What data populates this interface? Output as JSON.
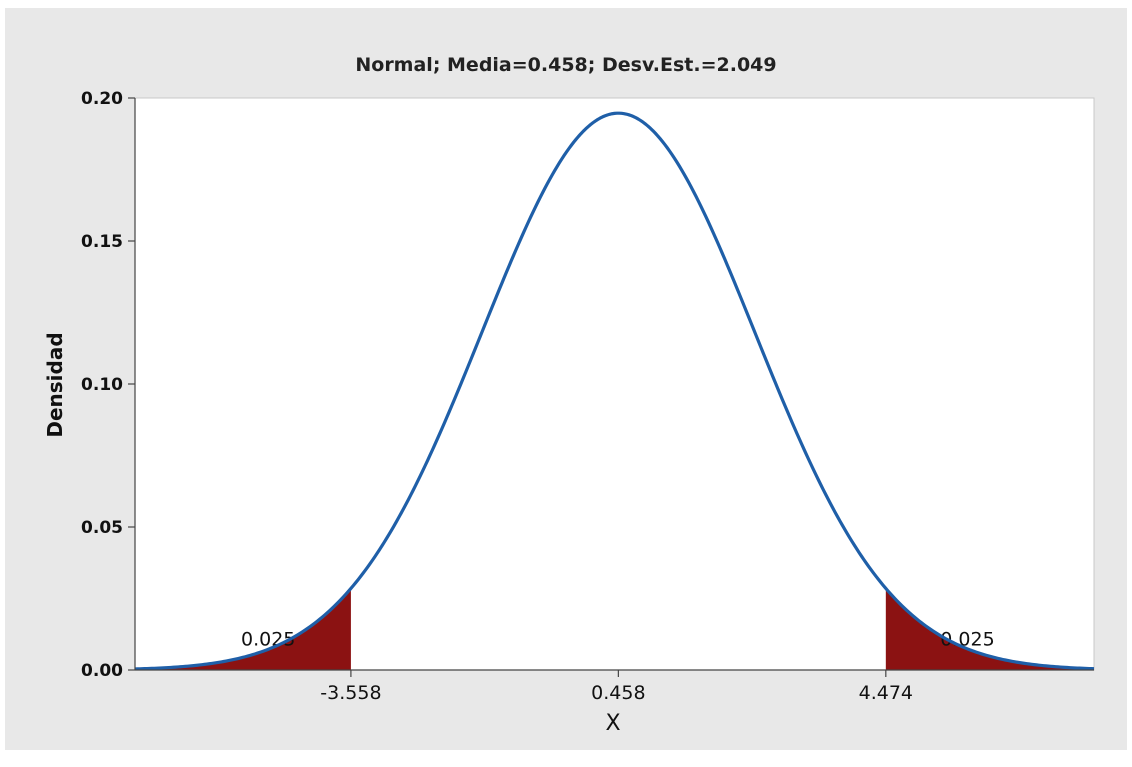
{
  "chart_data": {
    "type": "area",
    "title": "Normal; Media=0.458; Desv.Est.=2.049",
    "xlabel": "X",
    "ylabel": "Densidad",
    "distribution": "normal",
    "mean": 0.458,
    "sd": 2.049,
    "xlim": [
      -6.8,
      7.6
    ],
    "ylim": [
      0,
      0.2
    ],
    "yticks": [
      "0.00",
      "0.05",
      "0.10",
      "0.15",
      "0.20"
    ],
    "xticks": [
      "-3.558",
      "0.458",
      "4.474"
    ],
    "shaded_regions": [
      {
        "from": -6.8,
        "to": -3.558,
        "probability_label": "0.025",
        "label_x": -4.8,
        "label_y": 0.0085
      },
      {
        "from": 4.474,
        "to": 7.6,
        "probability_label": "0.025",
        "label_x": 5.7,
        "label_y": 0.0085
      }
    ],
    "grid": false,
    "colors": {
      "curve": "#1f5fa8",
      "shade": "#8b1212",
      "outer_bg": "#e8e8e8",
      "plot_bg": "#ffffff"
    }
  }
}
